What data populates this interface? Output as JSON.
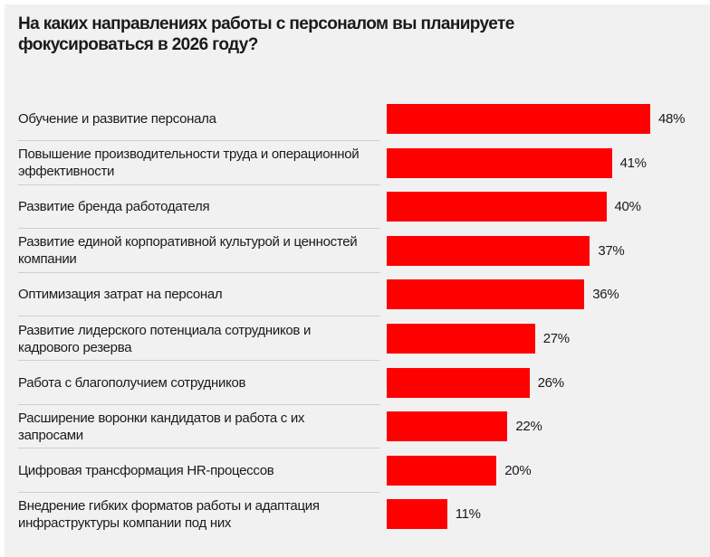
{
  "chart_data": {
    "type": "bar",
    "orientation": "horizontal",
    "title": "На каких направлениях работы с персоналом вы планируете фокусироваться в 2026 году?",
    "categories": [
      "Обучение и развитие персонала",
      "Повышение производительности труда и операционной эффективности",
      "Развитие бренда работодателя",
      "Развитие единой корпоративной культурой и ценностей компании",
      "Оптимизация затрат на персонал",
      "Развитие лидерского потенциала сотрудников и кадрового резерва",
      "Работа с благополучием сотрудников",
      "Расширение воронки кандидатов и работа с их запросами",
      "Цифровая трансформация HR-процессов",
      "Внедрение гибких форматов работы и адаптация инфраструктуры компании под них"
    ],
    "values": [
      48,
      41,
      40,
      37,
      36,
      27,
      26,
      22,
      20,
      11
    ],
    "data_labels": [
      "48%",
      "41%",
      "40%",
      "37%",
      "36%",
      "27%",
      "26%",
      "22%",
      "20%",
      "11%"
    ],
    "unit": "%",
    "xlim": [
      0,
      48
    ],
    "grid": false,
    "legend": "none",
    "bar_color": "#ff0000",
    "background": "#f1f1f1"
  }
}
